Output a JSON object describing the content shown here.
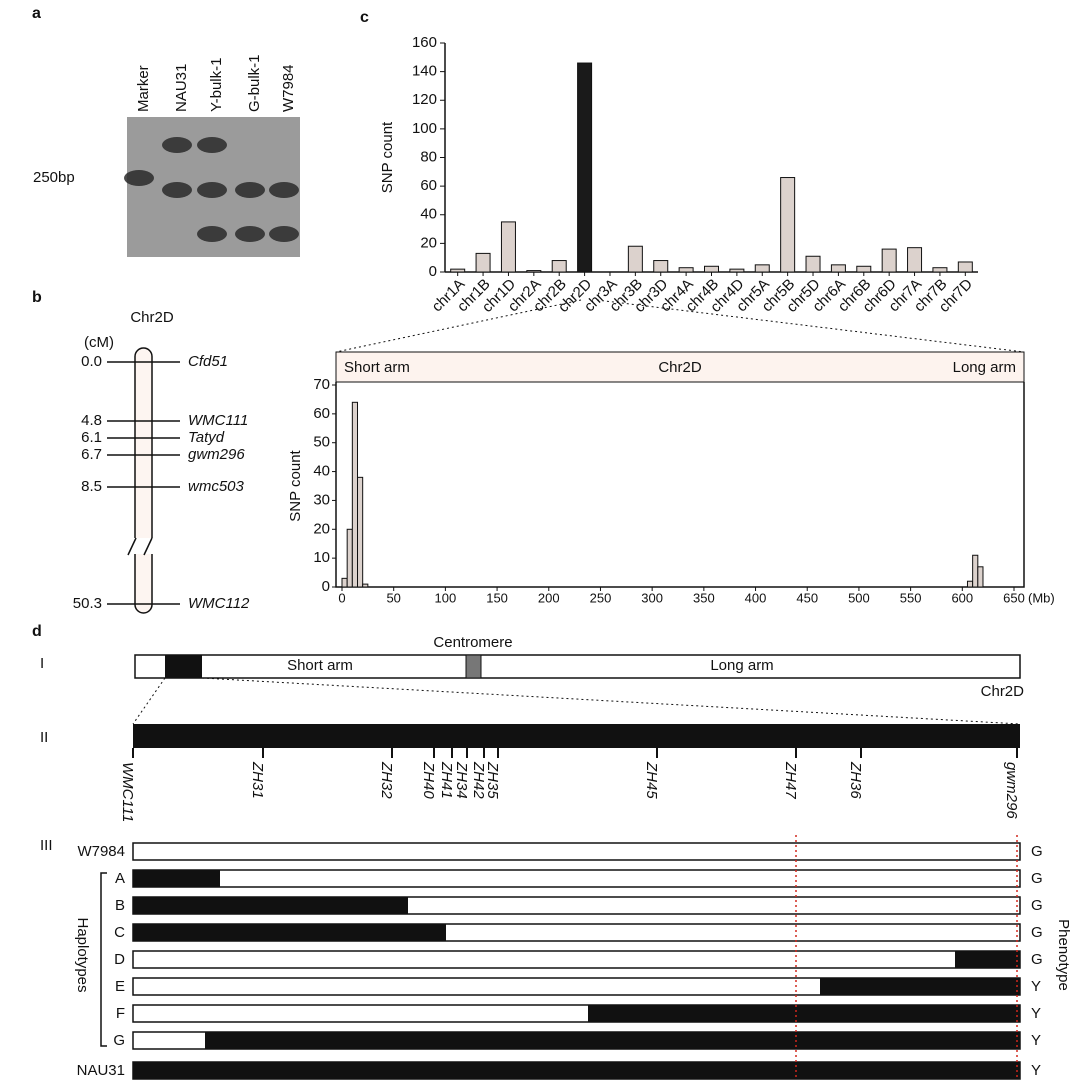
{
  "panel_labels": [
    "a",
    "b",
    "c",
    "d"
  ],
  "chart_data": [
    {
      "type": "bar",
      "ylabel": "SNP count",
      "categories": [
        "chr1A",
        "chr1B",
        "chr1D",
        "chr2A",
        "chr2B",
        "chr2D",
        "chr3A",
        "chr3B",
        "chr3D",
        "chr4A",
        "chr4B",
        "chr4D",
        "chr5A",
        "chr5B",
        "chr5D",
        "chr6A",
        "chr6B",
        "chr6D",
        "chr7A",
        "chr7B",
        "chr7D"
      ],
      "values": [
        2,
        13,
        35,
        1,
        8,
        146,
        0,
        18,
        8,
        3,
        4,
        2,
        5,
        66,
        11,
        5,
        4,
        16,
        17,
        3,
        7
      ],
      "colors": [
        "#dcd2cd",
        "#dcd2cd",
        "#dcd2cd",
        "#dcd2cd",
        "#dcd2cd",
        "#1a1a1a",
        "#dcd2cd",
        "#dcd2cd",
        "#dcd2cd",
        "#dcd2cd",
        "#dcd2cd",
        "#dcd2cd",
        "#dcd2cd",
        "#dcd2cd",
        "#dcd2cd",
        "#dcd2cd",
        "#dcd2cd",
        "#dcd2cd",
        "#dcd2cd",
        "#dcd2cd",
        "#dcd2cd"
      ],
      "ylim": [
        0,
        160
      ],
      "yticks": [
        0,
        20,
        40,
        60,
        80,
        100,
        120,
        140,
        160
      ]
    },
    {
      "type": "histogram",
      "ylabel": "SNP count",
      "xlabel": "(Mb)",
      "header": {
        "left": "Short arm",
        "center": "Chr2D",
        "right": "Long arm"
      },
      "color": "#dcd2cd",
      "bins": [
        0,
        5,
        10,
        15,
        20,
        25,
        30,
        35,
        40,
        45,
        50,
        55,
        60,
        65,
        70,
        75,
        80,
        85,
        90,
        95,
        100,
        105,
        110,
        115,
        120,
        125,
        130,
        135,
        140,
        145,
        150,
        155,
        160,
        165,
        170,
        175,
        180,
        185,
        190,
        195,
        200,
        205,
        210,
        215,
        220,
        225,
        230,
        235,
        240,
        245,
        250,
        255,
        260,
        265,
        270,
        275,
        280,
        285,
        290,
        295,
        300,
        305,
        310,
        315,
        320,
        325,
        330,
        335,
        340,
        345,
        350,
        355,
        360,
        365,
        370,
        375,
        380,
        385,
        390,
        395,
        400,
        405,
        410,
        415,
        420,
        425,
        430,
        435,
        440,
        445,
        450,
        455,
        460,
        465,
        470,
        475,
        480,
        485,
        490,
        495,
        500,
        505,
        510,
        515,
        520,
        525,
        530,
        535,
        540,
        545,
        550,
        555,
        560,
        565,
        570,
        575,
        580,
        585,
        590,
        595,
        600,
        605,
        610,
        615,
        620
      ],
      "values": [
        3,
        20,
        64,
        38,
        1,
        0,
        0,
        0,
        0,
        0,
        0,
        0,
        0,
        0,
        0,
        0,
        0,
        0,
        0,
        0,
        0,
        0,
        0,
        0,
        0,
        0,
        0,
        0,
        0,
        0,
        0,
        0,
        0,
        0,
        0,
        0,
        0,
        0,
        0,
        0,
        0,
        0,
        0,
        0,
        0,
        0,
        0,
        0,
        0,
        0,
        0,
        0,
        0,
        0,
        0,
        0,
        0,
        0,
        0,
        0,
        0,
        0,
        0,
        0,
        0,
        0,
        0,
        0,
        0,
        0,
        0,
        0,
        0,
        0,
        0,
        0,
        0,
        0,
        0,
        0,
        0,
        0,
        0,
        0,
        0,
        0,
        0,
        0,
        0,
        0,
        0,
        0,
        0,
        0,
        0,
        0,
        0,
        0,
        0,
        0,
        0,
        0,
        0,
        0,
        0,
        0,
        0,
        0,
        0,
        0,
        0,
        0,
        0,
        0,
        0,
        0,
        0,
        0,
        0,
        0,
        0,
        2,
        11,
        7
      ],
      "xlim": [
        0,
        650
      ],
      "xticks": [
        0,
        50,
        100,
        150,
        200,
        250,
        300,
        350,
        400,
        450,
        500,
        550,
        600,
        650
      ],
      "ylim": [
        0,
        70
      ],
      "yticks": [
        0,
        10,
        20,
        30,
        40,
        50,
        60,
        70
      ]
    }
  ],
  "gel": {
    "lanes": [
      "Marker",
      "NAU31",
      "Y-bulk-1",
      "G-bulk-1",
      "W7984"
    ],
    "size_marker": "250bp"
  },
  "genetic_map": {
    "title": "Chr2D",
    "unit": "(cM)",
    "markers": [
      {
        "position": "0.0",
        "name": "Cfd51"
      },
      {
        "position": "4.8",
        "name": "WMC111"
      },
      {
        "position": "6.1",
        "name": "Tatyd"
      },
      {
        "position": "6.7",
        "name": "gwm296"
      },
      {
        "position": "8.5",
        "name": "wmc503"
      },
      {
        "position": "50.3",
        "name": "WMC112"
      }
    ]
  },
  "physical_map": {
    "row_labels": [
      "I",
      "II",
      "III"
    ],
    "centromere": "Centromere",
    "short_arm": "Short arm",
    "long_arm": "Long arm",
    "chromosome": "Chr2D",
    "markers": [
      "WMC111",
      "ZH31",
      "ZH32",
      "ZH40",
      "ZH41",
      "ZH34",
      "ZH42",
      "ZH35",
      "ZH45",
      "ZH47",
      "ZH36",
      "gwm296"
    ],
    "haplotypes_label": "Haplotypes",
    "phenotype_label": "Phenotype",
    "lines": [
      {
        "name": "W7984",
        "phenotype": "G"
      },
      {
        "name": "A",
        "phenotype": "G"
      },
      {
        "name": "B",
        "phenotype": "G"
      },
      {
        "name": "C",
        "phenotype": "G"
      },
      {
        "name": "D",
        "phenotype": "G"
      },
      {
        "name": "E",
        "phenotype": "Y"
      },
      {
        "name": "F",
        "phenotype": "Y"
      },
      {
        "name": "G",
        "phenotype": "Y"
      },
      {
        "name": "NAU31",
        "phenotype": "Y"
      }
    ]
  }
}
